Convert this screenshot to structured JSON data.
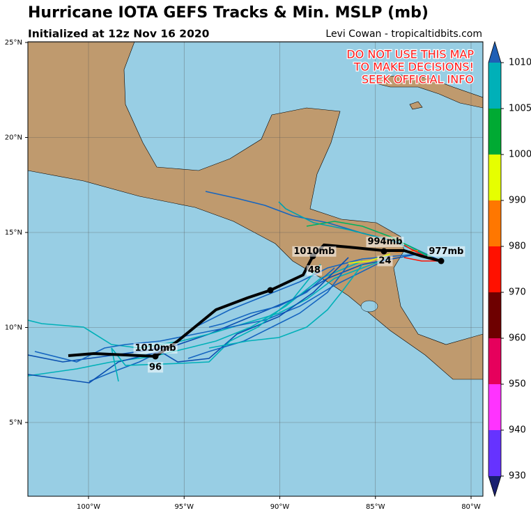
{
  "header": {
    "title": "Hurricane IOTA GEFS Tracks & Min. MSLP (mb)",
    "subtitle": "Initialized at 12z Nov 16 2020",
    "credit": "Levi Cowan - tropicaltidbits.com"
  },
  "map": {
    "warning": [
      "DO NOT USE THIS MAP",
      "TO MAKE DECISIONS!",
      "SEEK OFFICIAL INFO"
    ],
    "lon_ticks": [
      {
        "value": -100,
        "label": "100°W"
      },
      {
        "value": -95,
        "label": "95°W"
      },
      {
        "value": -90,
        "label": "90°W"
      },
      {
        "value": -85,
        "label": "85°W"
      },
      {
        "value": -80,
        "label": "80°W"
      }
    ],
    "lat_ticks": [
      {
        "value": 5,
        "label": "5°N"
      },
      {
        "value": 10,
        "label": "10°N"
      },
      {
        "value": 15,
        "label": "15°N"
      },
      {
        "value": 20,
        "label": "20°N"
      },
      {
        "value": 25,
        "label": "25°N"
      }
    ],
    "annotations": [
      {
        "text": "977mb",
        "lon": -81.3,
        "lat": 14.0
      },
      {
        "text": "994mb",
        "lon": -84.5,
        "lat": 14.5
      },
      {
        "text": "24",
        "lon": -84.5,
        "lat": 13.5
      },
      {
        "text": "1010mb",
        "lon": -88.2,
        "lat": 14.0
      },
      {
        "text": "48",
        "lon": -88.2,
        "lat": 13.0
      },
      {
        "text": "1010mb",
        "lon": -96.5,
        "lat": 8.9
      },
      {
        "text": "96",
        "lon": -96.5,
        "lat": 7.9
      }
    ],
    "colorbar": {
      "levels": [
        930,
        940,
        950,
        960,
        970,
        980,
        990,
        1000,
        1005,
        1010
      ],
      "colors": [
        "#6633ff",
        "#ff33ff",
        "#e6005c",
        "#6e0000",
        "#ff1100",
        "#ff7700",
        "#e6ff00",
        "#00aa33",
        "#00b0b8"
      ],
      "over_color": "#1f5fb5",
      "under_color": "#1a2070"
    }
  }
}
